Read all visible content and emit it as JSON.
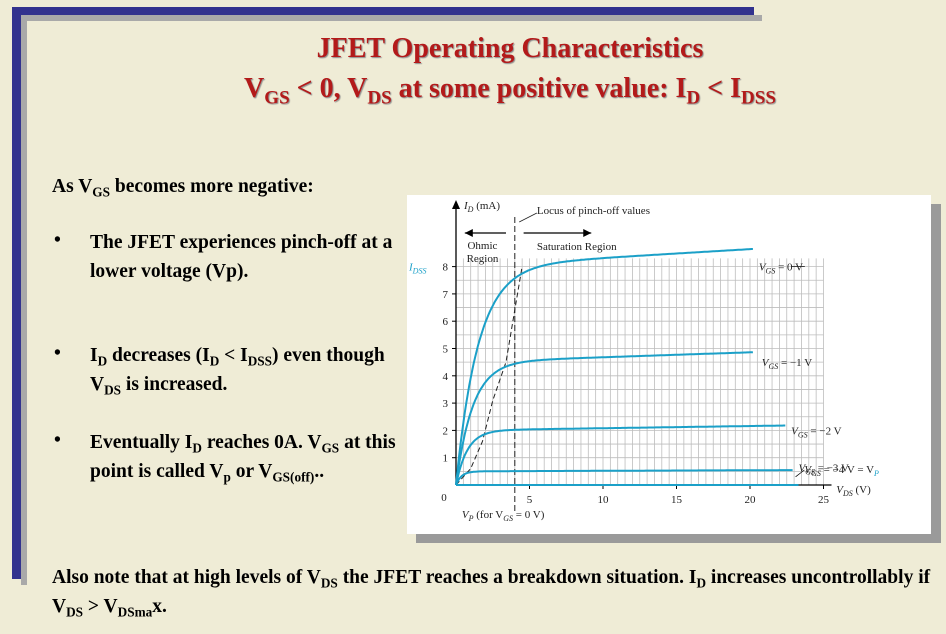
{
  "title": {
    "line1": "JFET Operating Characteristics",
    "line2_parts": [
      "V",
      "GS",
      " < 0, V",
      "DS",
      " at some positive value: I",
      "D",
      " < I",
      "DSS"
    ]
  },
  "intro": {
    "parts": [
      "As V",
      "GS",
      " becomes more negative:"
    ]
  },
  "bullets": [
    {
      "parts": [
        "The JFET experiences pinch-off at a lower voltage (Vp)."
      ]
    },
    {
      "parts": [
        "I",
        "D",
        " decreases (I",
        "D",
        " < I",
        "DSS",
        ") even though V",
        "DS",
        " is increased."
      ]
    },
    {
      "parts": [
        "Eventually I",
        "D",
        " reaches 0A. V",
        "GS",
        " at this point is called V",
        "p",
        " or V",
        "GS(off)",
        ".."
      ]
    }
  ],
  "footer": {
    "parts": [
      "Also note that at high levels of V",
      "DS",
      " the JFET reaches a breakdown situation. I",
      "D",
      " increases uncontrollably if V",
      "DS",
      " > V",
      "DSma",
      "x."
    ]
  },
  "colors": {
    "title": "#b31a1a",
    "curve": "#1ba0c8",
    "frame": "#32328e",
    "background": "#efecd6"
  },
  "chart_data": {
    "type": "line",
    "y_axis_label": "I_D (mA)",
    "y_axis_label_parts": [
      "I",
      "D",
      " (mA)"
    ],
    "x_axis_label_parts": [
      "V",
      "DS",
      " (V)"
    ],
    "xlim": [
      0,
      25
    ],
    "ylim": [
      0,
      8
    ],
    "x_ticks": [
      5,
      10,
      15,
      20,
      25
    ],
    "y_ticks": [
      1,
      2,
      3,
      4,
      5,
      6,
      7,
      8
    ],
    "origin_label": "0",
    "idss_label_parts": [
      "I",
      "DSS"
    ],
    "grid": true,
    "region_labels": {
      "ohmic": [
        "Ohmic",
        "Region"
      ],
      "saturation": "Saturation Region",
      "locus": "Locus of pinch-off values"
    },
    "vp_annotation_parts": [
      "V",
      "P",
      " (for V",
      "GS",
      " = 0 V)"
    ],
    "series": [
      {
        "label_parts": [
          "V",
          "GS",
          " = 0 V"
        ],
        "saturation": 8.0,
        "pinch_off": 4.5,
        "end_x": 20.3
      },
      {
        "label_parts": [
          "V",
          "GS",
          " = −1 V"
        ],
        "saturation": 4.5,
        "pinch_off": 3.4,
        "end_x": 20.3
      },
      {
        "label_parts": [
          "V",
          "GS",
          " = −2 V"
        ],
        "saturation": 2.0,
        "pinch_off": 2.3,
        "end_x": 22.5
      },
      {
        "label_parts": [
          "V",
          "GS",
          " = −3 V"
        ],
        "saturation": 0.5,
        "pinch_off": 1.1,
        "end_x": 23.0
      },
      {
        "label_parts": [
          "V",
          "GS",
          " = −4 V = V",
          "P"
        ],
        "saturation": 0.0,
        "pinch_off": 0.0,
        "end_x": 23.3
      }
    ]
  }
}
